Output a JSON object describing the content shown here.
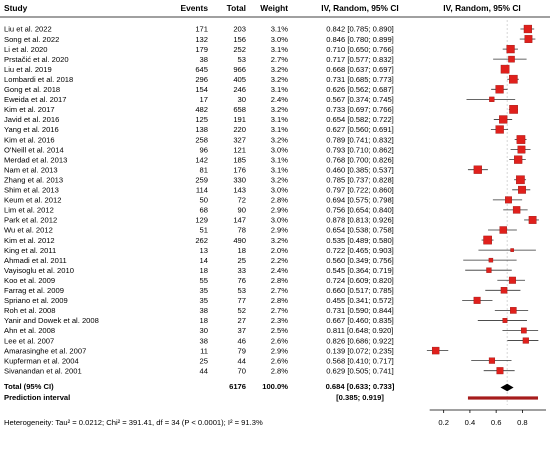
{
  "chart_data": {
    "type": "forest",
    "columns": {
      "study": "Study",
      "events": "Events",
      "total": "Total",
      "weight": "Weight",
      "effect_text": "IV, Random, 95% CI",
      "effect_plot": "IV, Random, 95% CI"
    },
    "studies": [
      {
        "study": "Liu et al. 2022",
        "events": "171",
        "total": "203",
        "weight": "3.1%",
        "ci_text": "0.842 [0.785; 0.890]",
        "est": 0.842,
        "lo": 0.785,
        "hi": 0.89,
        "w": 3.1
      },
      {
        "study": "Song et al. 2022",
        "events": "132",
        "total": "156",
        "weight": "3.0%",
        "ci_text": "0.846 [0.780; 0.899]",
        "est": 0.846,
        "lo": 0.78,
        "hi": 0.899,
        "w": 3.0
      },
      {
        "study": "Li et al. 2020",
        "events": "179",
        "total": "252",
        "weight": "3.1%",
        "ci_text": "0.710 [0.650; 0.766]",
        "est": 0.71,
        "lo": 0.65,
        "hi": 0.766,
        "w": 3.1
      },
      {
        "study": "Prstačić et al. 2020",
        "events": "38",
        "total": "53",
        "weight": "2.7%",
        "ci_text": "0.717 [0.577; 0.832]",
        "est": 0.717,
        "lo": 0.577,
        "hi": 0.832,
        "w": 2.7
      },
      {
        "study": "Liu et al. 2019",
        "events": "645",
        "total": "966",
        "weight": "3.2%",
        "ci_text": "0.668 [0.637; 0.697]",
        "est": 0.668,
        "lo": 0.637,
        "hi": 0.697,
        "w": 3.2
      },
      {
        "study": "Lombardi et al. 2018",
        "events": "296",
        "total": "405",
        "weight": "3.2%",
        "ci_text": "0.731 [0.685; 0.773]",
        "est": 0.731,
        "lo": 0.685,
        "hi": 0.773,
        "w": 3.2
      },
      {
        "study": "Gong et al. 2018",
        "events": "154",
        "total": "246",
        "weight": "3.1%",
        "ci_text": "0.626 [0.562; 0.687]",
        "est": 0.626,
        "lo": 0.562,
        "hi": 0.687,
        "w": 3.1
      },
      {
        "study": "Eweida et al. 2017",
        "events": "17",
        "total": "30",
        "weight": "2.4%",
        "ci_text": "0.567 [0.374; 0.745]",
        "est": 0.567,
        "lo": 0.374,
        "hi": 0.745,
        "w": 2.4
      },
      {
        "study": "Kim et al. 2017",
        "events": "482",
        "total": "658",
        "weight": "3.2%",
        "ci_text": "0.733 [0.697; 0.766]",
        "est": 0.733,
        "lo": 0.697,
        "hi": 0.766,
        "w": 3.2
      },
      {
        "study": "Javid et al. 2016",
        "events": "125",
        "total": "191",
        "weight": "3.1%",
        "ci_text": "0.654 [0.582; 0.722]",
        "est": 0.654,
        "lo": 0.582,
        "hi": 0.722,
        "w": 3.1
      },
      {
        "study": "Yang et al. 2016",
        "events": "138",
        "total": "220",
        "weight": "3.1%",
        "ci_text": "0.627 [0.560; 0.691]",
        "est": 0.627,
        "lo": 0.56,
        "hi": 0.691,
        "w": 3.1
      },
      {
        "study": "Kim et al. 2016",
        "events": "258",
        "total": "327",
        "weight": "3.2%",
        "ci_text": "0.789 [0.741; 0.832]",
        "est": 0.789,
        "lo": 0.741,
        "hi": 0.832,
        "w": 3.2
      },
      {
        "study": "O'Neill et al. 2014",
        "events": "96",
        "total": "121",
        "weight": "3.0%",
        "ci_text": "0.793 [0.710; 0.862]",
        "est": 0.793,
        "lo": 0.71,
        "hi": 0.862,
        "w": 3.0
      },
      {
        "study": "Merdad et al. 2013",
        "events": "142",
        "total": "185",
        "weight": "3.1%",
        "ci_text": "0.768 [0.700; 0.826]",
        "est": 0.768,
        "lo": 0.7,
        "hi": 0.826,
        "w": 3.1
      },
      {
        "study": "Nam et al. 2013",
        "events": "81",
        "total": "176",
        "weight": "3.1%",
        "ci_text": "0.460 [0.385; 0.537]",
        "est": 0.46,
        "lo": 0.385,
        "hi": 0.537,
        "w": 3.1
      },
      {
        "study": "Zhang et al. 2013",
        "events": "259",
        "total": "330",
        "weight": "3.2%",
        "ci_text": "0.785 [0.737; 0.828]",
        "est": 0.785,
        "lo": 0.737,
        "hi": 0.828,
        "w": 3.2
      },
      {
        "study": "Shim et al. 2013",
        "events": "114",
        "total": "143",
        "weight": "3.0%",
        "ci_text": "0.797 [0.722; 0.860]",
        "est": 0.797,
        "lo": 0.722,
        "hi": 0.86,
        "w": 3.0
      },
      {
        "study": "Keum et al. 2012",
        "events": "50",
        "total": "72",
        "weight": "2.8%",
        "ci_text": "0.694 [0.575; 0.798]",
        "est": 0.694,
        "lo": 0.575,
        "hi": 0.798,
        "w": 2.8
      },
      {
        "study": "Lim et al. 2012",
        "events": "68",
        "total": "90",
        "weight": "2.9%",
        "ci_text": "0.756 [0.654; 0.840]",
        "est": 0.756,
        "lo": 0.654,
        "hi": 0.84,
        "w": 2.9
      },
      {
        "study": "Park et al. 2012",
        "events": "129",
        "total": "147",
        "weight": "3.0%",
        "ci_text": "0.878 [0.813; 0.926]",
        "est": 0.878,
        "lo": 0.813,
        "hi": 0.926,
        "w": 3.0
      },
      {
        "study": "Wu et al. 2012",
        "events": "51",
        "total": "78",
        "weight": "2.9%",
        "ci_text": "0.654 [0.538; 0.758]",
        "est": 0.654,
        "lo": 0.538,
        "hi": 0.758,
        "w": 2.9
      },
      {
        "study": "Kim et al. 2012",
        "events": "262",
        "total": "490",
        "weight": "3.2%",
        "ci_text": "0.535 [0.489; 0.580]",
        "est": 0.535,
        "lo": 0.489,
        "hi": 0.58,
        "w": 3.2
      },
      {
        "study": "King et al. 2011",
        "events": "13",
        "total": "18",
        "weight": "2.0%",
        "ci_text": "0.722 [0.465; 0.903]",
        "est": 0.722,
        "lo": 0.465,
        "hi": 0.903,
        "w": 2.0
      },
      {
        "study": "Ahmadi et al. 2011",
        "events": "14",
        "total": "25",
        "weight": "2.2%",
        "ci_text": "0.560 [0.349; 0.756]",
        "est": 0.56,
        "lo": 0.349,
        "hi": 0.756,
        "w": 2.2
      },
      {
        "study": "Vayisoglu et al. 2010",
        "events": "18",
        "total": "33",
        "weight": "2.4%",
        "ci_text": "0.545 [0.364; 0.719]",
        "est": 0.545,
        "lo": 0.364,
        "hi": 0.719,
        "w": 2.4
      },
      {
        "study": "Koo et al. 2009",
        "events": "55",
        "total": "76",
        "weight": "2.8%",
        "ci_text": "0.724 [0.609; 0.820]",
        "est": 0.724,
        "lo": 0.609,
        "hi": 0.82,
        "w": 2.8
      },
      {
        "study": "Farrag et al. 2009",
        "events": "35",
        "total": "53",
        "weight": "2.7%",
        "ci_text": "0.660 [0.517; 0.785]",
        "est": 0.66,
        "lo": 0.517,
        "hi": 0.785,
        "w": 2.7
      },
      {
        "study": "Spriano et al. 2009",
        "events": "35",
        "total": "77",
        "weight": "2.8%",
        "ci_text": "0.455 [0.341; 0.572]",
        "est": 0.455,
        "lo": 0.341,
        "hi": 0.572,
        "w": 2.8
      },
      {
        "study": "Roh et al. 2008",
        "events": "38",
        "total": "52",
        "weight": "2.7%",
        "ci_text": "0.731 [0.590; 0.844]",
        "est": 0.731,
        "lo": 0.59,
        "hi": 0.844,
        "w": 2.7
      },
      {
        "study": "Yanir and Dowek et al. 2008",
        "events": "18",
        "total": "27",
        "weight": "2.3%",
        "ci_text": "0.667 [0.460; 0.835]",
        "est": 0.667,
        "lo": 0.46,
        "hi": 0.835,
        "w": 2.3
      },
      {
        "study": "Ahn et al. 2008",
        "events": "30",
        "total": "37",
        "weight": "2.5%",
        "ci_text": "0.811 [0.648; 0.920]",
        "est": 0.811,
        "lo": 0.648,
        "hi": 0.92,
        "w": 2.5
      },
      {
        "study": "Lee et al. 2007",
        "events": "38",
        "total": "46",
        "weight": "2.6%",
        "ci_text": "0.826 [0.686; 0.922]",
        "est": 0.826,
        "lo": 0.686,
        "hi": 0.922,
        "w": 2.6
      },
      {
        "study": "Amarasinghe et al. 2007",
        "events": "11",
        "total": "79",
        "weight": "2.9%",
        "ci_text": "0.139 [0.072; 0.235]",
        "est": 0.139,
        "lo": 0.072,
        "hi": 0.235,
        "w": 2.9
      },
      {
        "study": "Kupferman et al. 2004",
        "events": "25",
        "total": "44",
        "weight": "2.6%",
        "ci_text": "0.568 [0.410; 0.717]",
        "est": 0.568,
        "lo": 0.41,
        "hi": 0.717,
        "w": 2.6
      },
      {
        "study": "Sivanandan et al. 2001",
        "events": "44",
        "total": "70",
        "weight": "2.8%",
        "ci_text": "0.629 [0.505; 0.741]",
        "est": 0.629,
        "lo": 0.505,
        "hi": 0.741,
        "w": 2.8
      }
    ],
    "total": {
      "label": "Total (95% CI)",
      "total": "6176",
      "weight": "100.0%",
      "ci_text": "0.684 [0.633; 0.733]",
      "est": 0.684,
      "lo": 0.633,
      "hi": 0.733
    },
    "prediction": {
      "label": "Prediction interval",
      "ci_text": "[0.385; 0.919]",
      "lo": 0.385,
      "hi": 0.919
    },
    "heterogeneity": "Heterogeneity: Tau² = 0.0212; Chi² = 391.41, df = 34 (P < 0.0001); I² = 91.3%",
    "x_ticks": [
      0.2,
      0.4,
      0.6,
      0.8
    ],
    "xlim": [
      0.05,
      0.98
    ],
    "colors": {
      "marker": "#e0201c",
      "marker_border": "#9a1210",
      "prediction": "#a61c1c",
      "reference": "#000000",
      "grid": "#cccccc"
    }
  }
}
